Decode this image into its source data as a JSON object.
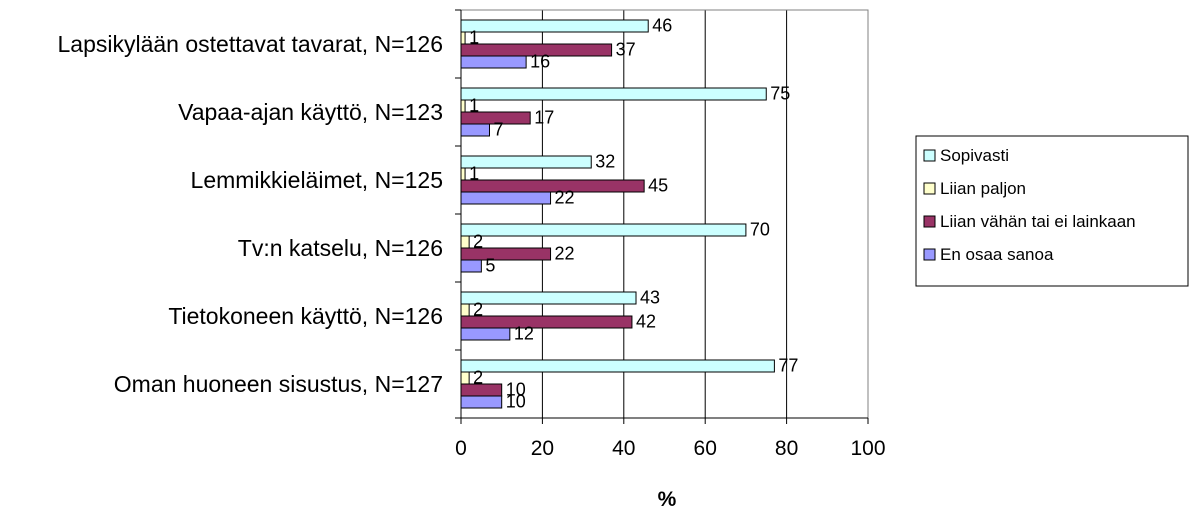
{
  "chart_data": {
    "type": "bar",
    "orientation": "horizontal",
    "categories": [
      "Lapsikylään ostettavat tavarat, N=126",
      "Vapaa-ajan käyttö, N=123",
      "Lemmikkieläimet, N=125",
      "Tv:n katselu, N=126",
      "Tietokoneen käyttö, N=126",
      "Oman huoneen sisustus, N=127"
    ],
    "series": [
      {
        "name": "Sopivasti",
        "color": "#ccffff",
        "values": [
          46,
          75,
          32,
          70,
          43,
          77
        ]
      },
      {
        "name": "Liian paljon",
        "color": "#ffffcc",
        "values": [
          1,
          1,
          1,
          2,
          2,
          2
        ]
      },
      {
        "name": "Liian vähän tai ei lainkaan",
        "color": "#993366",
        "values": [
          37,
          17,
          45,
          22,
          42,
          10
        ]
      },
      {
        "name": "En osaa sanoa",
        "color": "#9999ff",
        "values": [
          16,
          7,
          22,
          5,
          12,
          10
        ]
      }
    ],
    "xlabel": "%",
    "xlim": [
      0,
      100
    ],
    "xticks": [
      0,
      20,
      40,
      60,
      80,
      100
    ],
    "grid": true,
    "legend_position": "right"
  }
}
